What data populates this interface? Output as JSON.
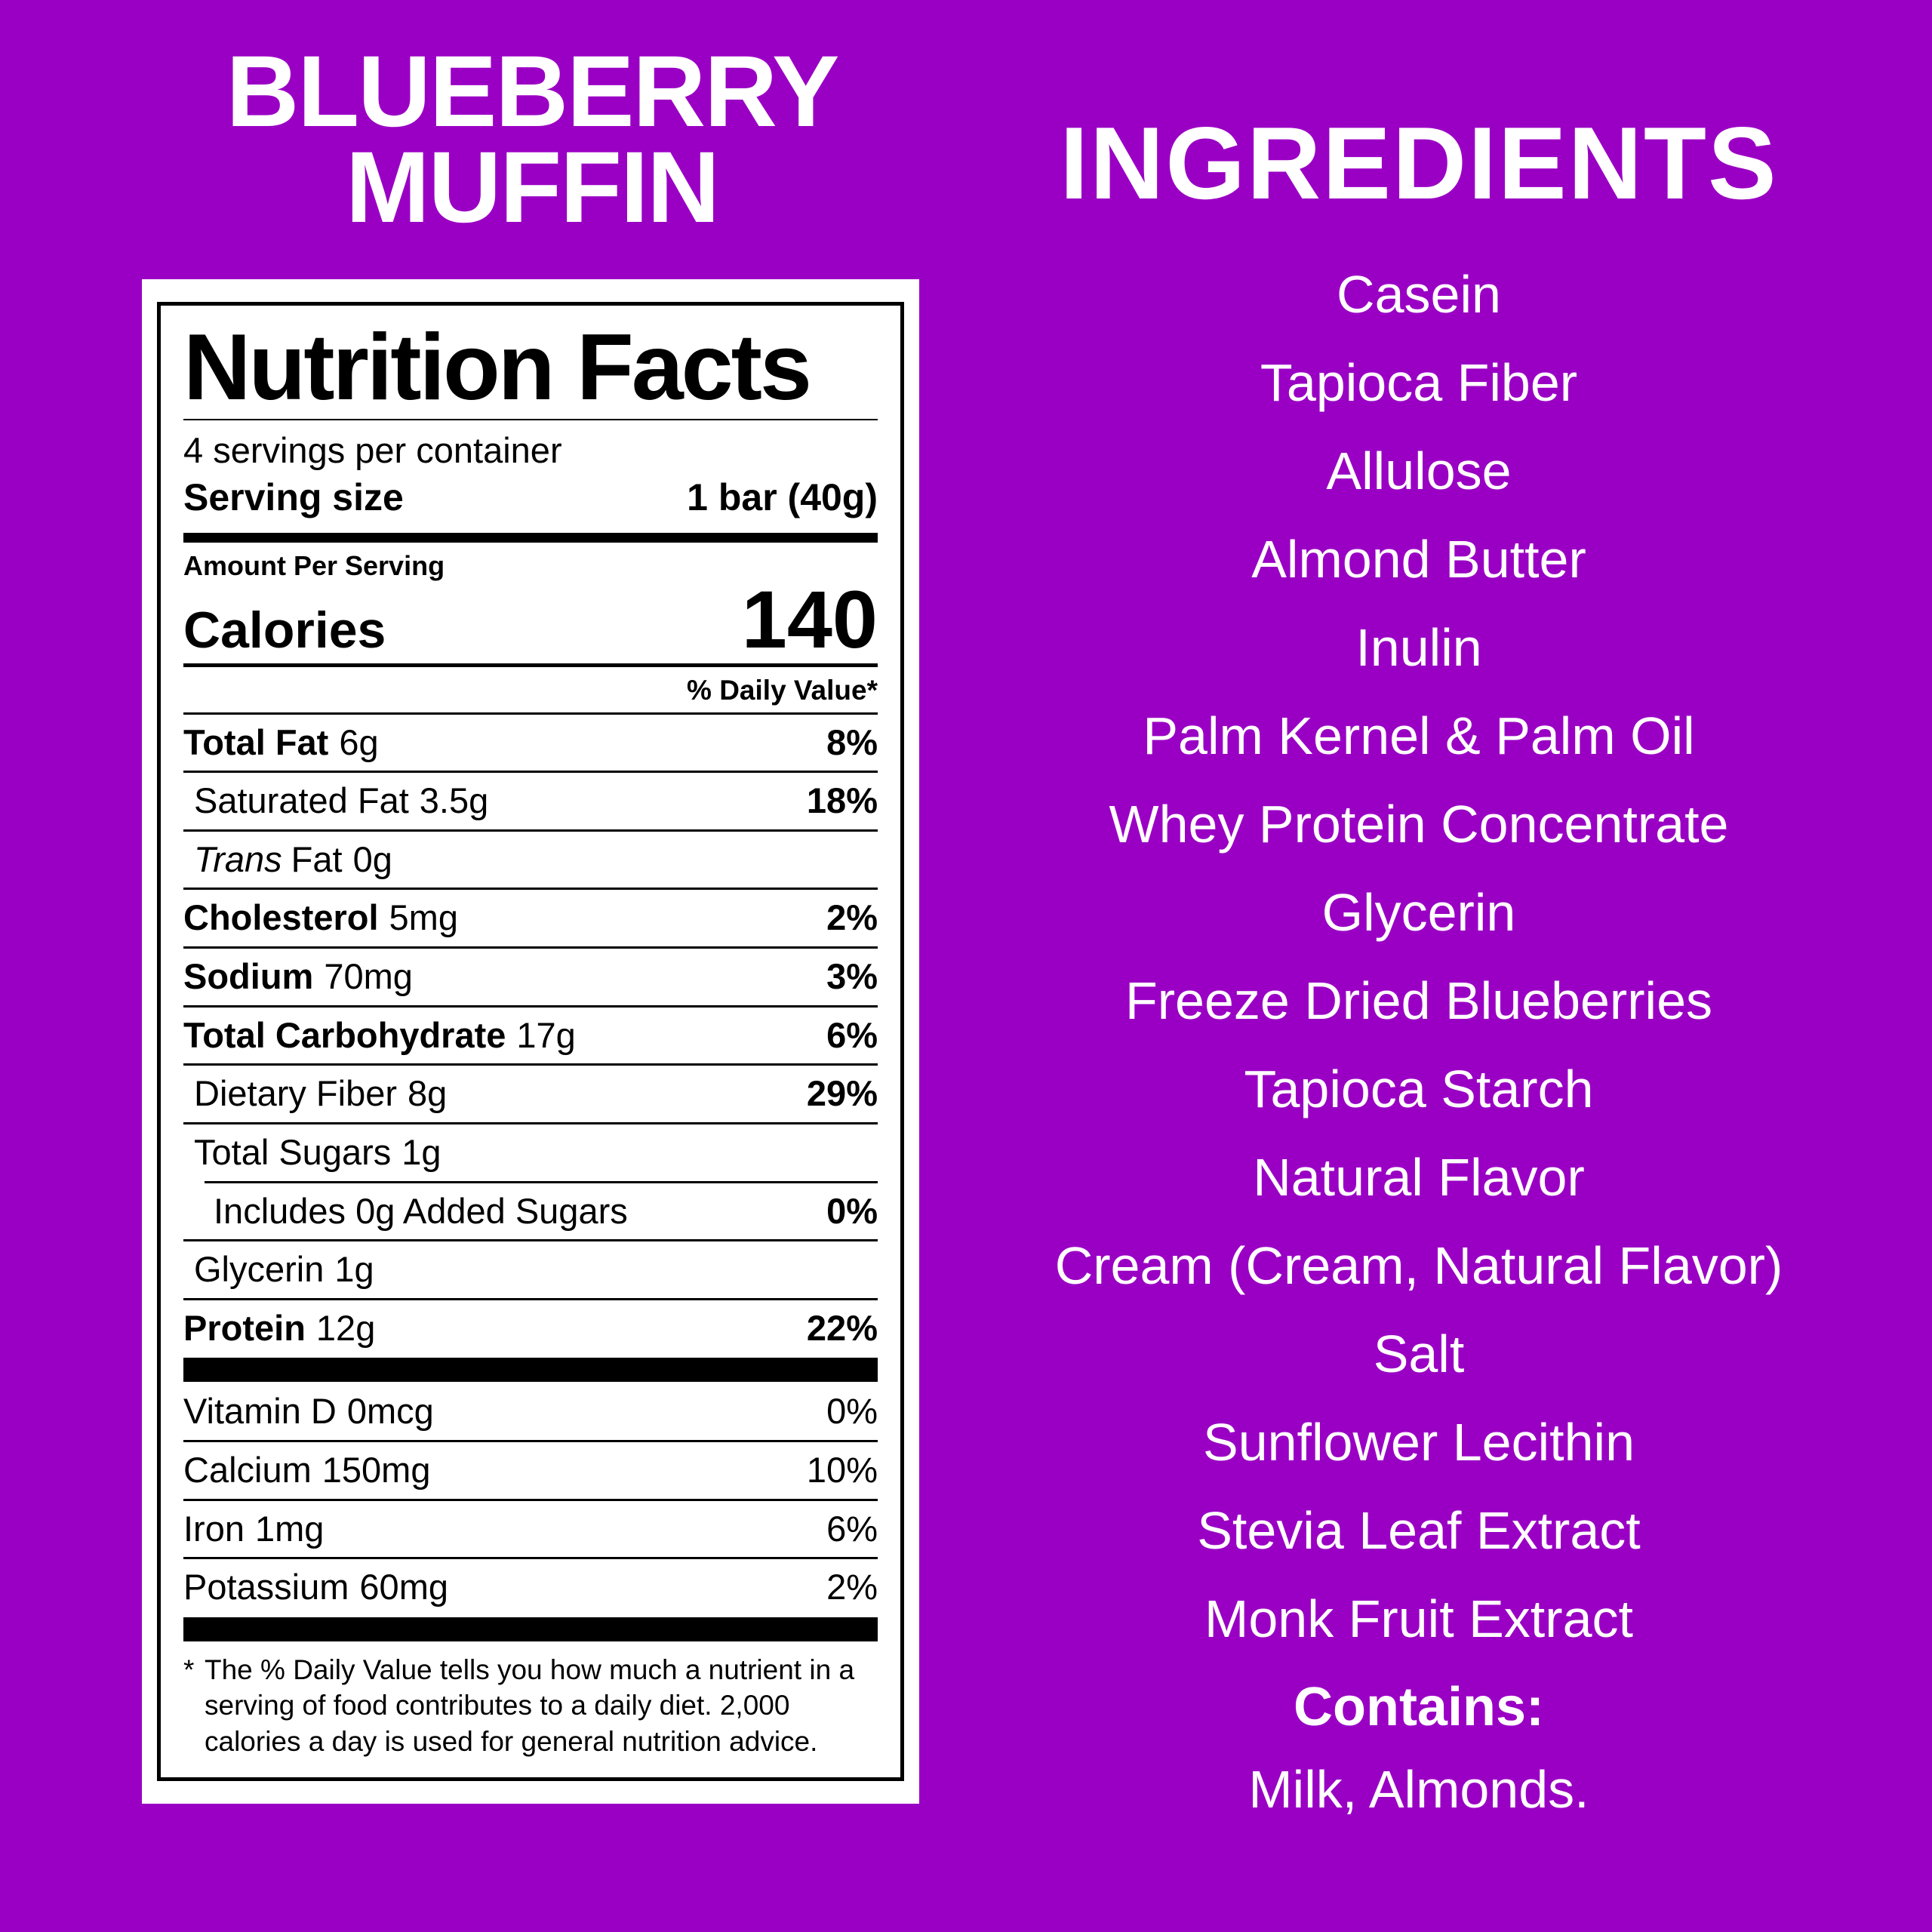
{
  "colors": {
    "background": "#9A00C4",
    "text_on_background": "#FFFFFF",
    "label_background": "#FFFFFF",
    "label_text": "#000000"
  },
  "product": {
    "title_line1": "BLUEBERRY",
    "title_line2": "MUFFIN"
  },
  "nutrition_label": {
    "heading": "Nutrition Facts",
    "servings_per_container": "4 servings per container",
    "serving_size_label": "Serving size",
    "serving_size_value": "1 bar (40g)",
    "amount_per_serving": "Amount Per Serving",
    "calories_label": "Calories",
    "calories_value": "140",
    "daily_value_heading": "% Daily Value*",
    "rows": [
      {
        "name": "Total Fat",
        "amount": "6g",
        "dv": "8%",
        "name_bold": true,
        "dv_bold": true
      },
      {
        "name": "Saturated Fat",
        "amount": "3.5g",
        "dv": "18%",
        "indent": 1,
        "dv_bold": true
      },
      {
        "name_italic": "Trans",
        "name": "Fat",
        "amount": "0g",
        "indent": 1
      },
      {
        "name": "Cholesterol",
        "amount": "5mg",
        "dv": "2%",
        "name_bold": true,
        "dv_bold": true
      },
      {
        "name": "Sodium",
        "amount": "70mg",
        "dv": "3%",
        "name_bold": true,
        "dv_bold": true
      },
      {
        "name": "Total Carbohydrate",
        "amount": "17g",
        "dv": "6%",
        "name_bold": true,
        "dv_bold": true
      },
      {
        "name": "Dietary Fiber",
        "amount": "8g",
        "dv": "29%",
        "indent": 1,
        "dv_bold": true
      },
      {
        "name": "Total Sugars",
        "amount": "1g",
        "indent": 1
      },
      {
        "name": "Includes 0g Added Sugars",
        "dv": "0%",
        "indent": 2,
        "rule": "inset",
        "dv_bold": true
      },
      {
        "name": "Glycerin",
        "amount": "1g",
        "indent": 1
      },
      {
        "name": "Protein",
        "amount": "12g",
        "dv": "22%",
        "name_bold": true,
        "dv_bold": true
      },
      {
        "type": "bar"
      },
      {
        "name": "Vitamin D",
        "amount": "0mcg",
        "dv": "0%",
        "rule": "none"
      },
      {
        "name": "Calcium",
        "amount": "150mg",
        "dv": "10%"
      },
      {
        "name": "Iron",
        "amount": "1mg",
        "dv": "6%"
      },
      {
        "name": "Potassium",
        "amount": "60mg",
        "dv": "2%"
      },
      {
        "type": "bar"
      }
    ],
    "footnote_marker": "*",
    "footnote": "The % Daily Value tells you how much a nutrient in a serving of food contributes to a daily diet. 2,000 calories a day is used for general nutrition advice."
  },
  "ingredients": {
    "heading": "INGREDIENTS",
    "items": [
      "Casein",
      "Tapioca Fiber",
      "Allulose",
      "Almond Butter",
      "Inulin",
      "Palm Kernel & Palm Oil",
      "Whey Protein Concentrate",
      "Glycerin",
      "Freeze Dried Blueberries",
      "Tapioca Starch",
      "Natural Flavor",
      "Cream (Cream, Natural Flavor)",
      "Salt",
      "Sunflower Lecithin",
      "Stevia Leaf Extract",
      "Monk Fruit Extract"
    ],
    "contains_label": "Contains:",
    "contains_value": "Milk, Almonds."
  }
}
